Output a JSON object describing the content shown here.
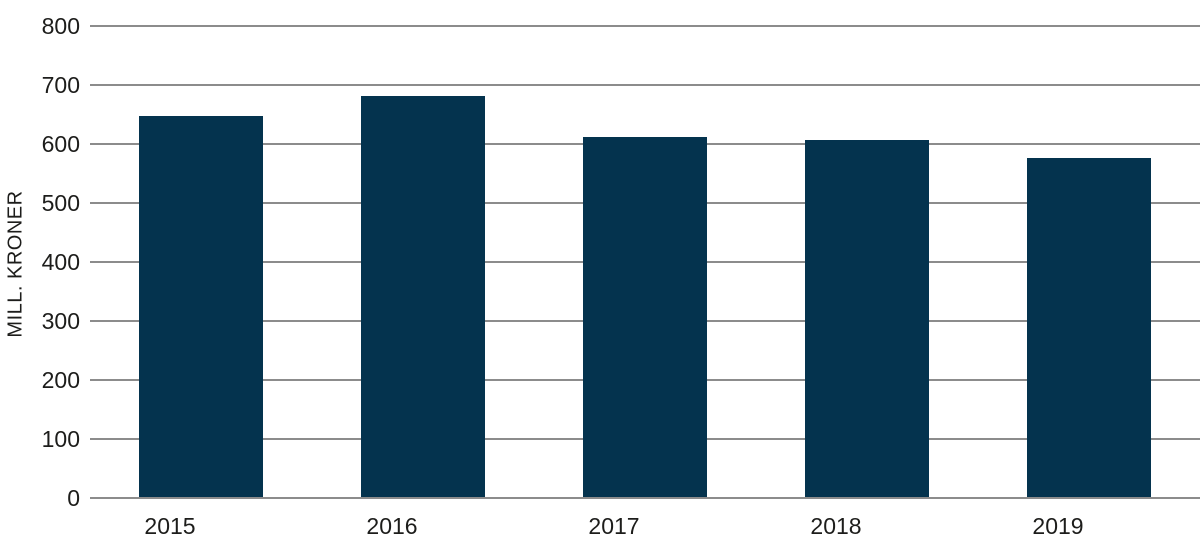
{
  "chart_data": {
    "type": "bar",
    "categories": [
      "2015",
      "2016",
      "2017",
      "2018",
      "2019"
    ],
    "values": [
      645,
      680,
      610,
      605,
      575
    ],
    "ylabel": "MILL. KRONER",
    "xlabel": "",
    "ylim": [
      0,
      800
    ],
    "yticks": [
      0,
      100,
      200,
      300,
      400,
      500,
      600,
      700,
      800
    ],
    "grid": true,
    "legend": "none",
    "bar_color": "#04334e",
    "gridline_color": "#8c8c8c",
    "text_color": "#1d1d1b"
  }
}
